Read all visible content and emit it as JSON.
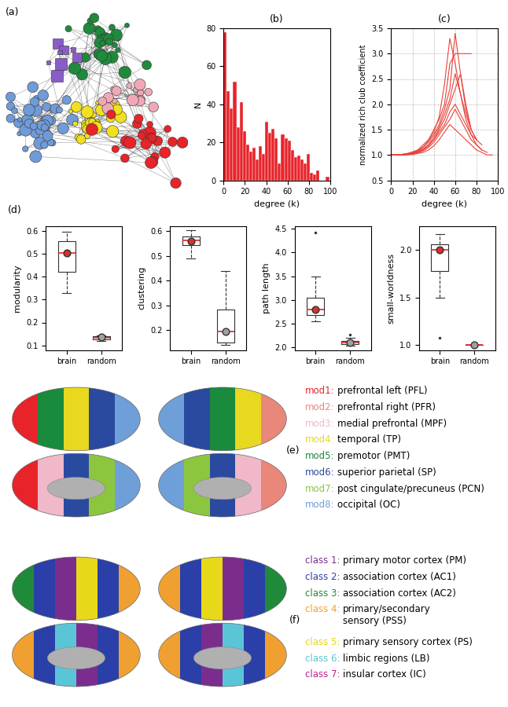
{
  "chart_data": [
    {
      "type": "network",
      "title": "(a)",
      "colors": [
        "#6f9bd8",
        "#1f8a3c",
        "#f0e020",
        "#f0a8b8",
        "#e8232a",
        "#8a5cc8"
      ]
    },
    {
      "type": "histogram",
      "title": "(b)",
      "xlabel": "degree (k)",
      "ylabel": "N",
      "bins": [
        0,
        3,
        6,
        9,
        12,
        15,
        18,
        21,
        24,
        27,
        30,
        33,
        36,
        39,
        42,
        45,
        48,
        51,
        54,
        57,
        60,
        63,
        66,
        69,
        72,
        75,
        78,
        81,
        84,
        87,
        90,
        93,
        96,
        99
      ],
      "counts": [
        78,
        47,
        38,
        52,
        28,
        41,
        26,
        19,
        15,
        17,
        11,
        18,
        14,
        31,
        25,
        27,
        22,
        9,
        24,
        22,
        21,
        16,
        12,
        13,
        11,
        9,
        14,
        4,
        3,
        5,
        0,
        0,
        2
      ],
      "color": "#e8232a",
      "xlim": [
        0,
        100
      ],
      "ylim": [
        0,
        80
      ],
      "xticks": [
        0,
        20,
        40,
        60,
        80,
        100
      ],
      "yticks": [
        0,
        20,
        40,
        60,
        80
      ]
    },
    {
      "type": "line",
      "title": "(c)",
      "xlabel": "degree (k)",
      "ylabel": "normalized rich club coefficient",
      "x": [
        0,
        5,
        10,
        15,
        20,
        25,
        30,
        35,
        40,
        45,
        50,
        55,
        60,
        65,
        70,
        75,
        80,
        85,
        90,
        95
      ],
      "series": [
        {
          "color": "#e8433a",
          "values": [
            1,
            1,
            1.01,
            1.02,
            1.04,
            1.08,
            1.15,
            1.25,
            1.4,
            1.6,
            1.9,
            2.3,
            3.4,
            2.6,
            1.9,
            1.5,
            1.3,
            null,
            null,
            null
          ]
        },
        {
          "color": "#e8433a",
          "values": [
            1,
            1,
            1.01,
            1.03,
            1.06,
            1.1,
            1.2,
            1.3,
            1.5,
            1.7,
            2.0,
            2.8,
            3.0,
            3.0,
            3.0,
            3.0,
            null,
            null,
            null,
            null
          ]
        },
        {
          "color": "#e8433a",
          "values": [
            1,
            1,
            1.0,
            1.01,
            1.03,
            1.06,
            1.1,
            1.2,
            1.3,
            1.45,
            1.6,
            1.85,
            2.0,
            1.8,
            1.6,
            1.4,
            1.3,
            1.2,
            null,
            null
          ]
        },
        {
          "color": "#e8433a",
          "values": [
            1,
            1,
            1.01,
            1.02,
            1.04,
            1.07,
            1.12,
            1.2,
            1.35,
            1.55,
            1.8,
            2.1,
            2.6,
            2.2,
            1.7,
            1.4,
            1.2,
            1.1,
            1.05,
            null
          ]
        },
        {
          "color": "#e8433a",
          "values": [
            1,
            1,
            1.0,
            1.01,
            1.02,
            1.04,
            1.08,
            1.15,
            1.25,
            1.4,
            1.55,
            1.7,
            1.9,
            1.7,
            1.5,
            1.3,
            1.2,
            1.1,
            null,
            null
          ]
        },
        {
          "color": "#e8433a",
          "values": [
            1,
            1,
            1.01,
            1.02,
            1.05,
            1.09,
            1.16,
            1.28,
            1.45,
            1.75,
            2.4,
            3.3,
            2.8,
            2.2,
            1.8,
            1.5,
            null,
            null,
            null,
            null
          ]
        },
        {
          "color": "#e8433a",
          "values": [
            1,
            1,
            1.0,
            1.0,
            1.01,
            1.03,
            1.05,
            1.1,
            1.18,
            1.3,
            1.45,
            1.6,
            1.5,
            1.4,
            1.3,
            1.2,
            1.1,
            1.05,
            1.0,
            1.0
          ]
        },
        {
          "color": "#e8433a",
          "values": [
            1,
            1,
            1.0,
            1.01,
            1.02,
            1.05,
            1.1,
            1.18,
            1.3,
            1.5,
            1.7,
            2.0,
            2.3,
            2.6,
            2.0,
            1.5,
            1.3,
            null,
            null,
            null
          ]
        }
      ],
      "xlim": [
        0,
        100
      ],
      "ylim": [
        0.5,
        3.5
      ],
      "xticks": [
        0,
        20,
        40,
        60,
        80,
        100
      ],
      "yticks": [
        0.5,
        {
          "value": 1,
          "label": "1.0"
        },
        1.5,
        {
          "value": 2,
          "label": "2.0"
        },
        2.5,
        {
          "value": 3,
          "label": "3.0"
        },
        3.5
      ],
      "grid": true
    },
    {
      "type": "box",
      "title": "(d)",
      "ylabel": "modularity",
      "categories": [
        "brain",
        "random"
      ],
      "stats": [
        {
          "whislo": 0.33,
          "q1": 0.42,
          "median": 0.505,
          "q3": 0.555,
          "whishi": 0.595,
          "mean": 0.505,
          "fliers": []
        },
        {
          "whislo": 0.12,
          "q1": 0.128,
          "median": 0.133,
          "q3": 0.14,
          "whishi": 0.145,
          "mean": 0.135,
          "fliers": []
        }
      ],
      "colors": [
        "#d9302a",
        "#a0a0a0"
      ],
      "ylim": [
        0.08,
        0.62
      ],
      "yticks": [
        0.1,
        0.2,
        0.3,
        0.4,
        0.5,
        0.6
      ]
    },
    {
      "type": "box",
      "ylabel": "clustering",
      "categories": [
        "brain",
        "random"
      ],
      "stats": [
        {
          "whislo": 0.49,
          "q1": 0.545,
          "median": 0.562,
          "q3": 0.578,
          "whishi": 0.605,
          "mean": 0.56,
          "fliers": []
        },
        {
          "whislo": 0.14,
          "q1": 0.15,
          "median": 0.195,
          "q3": 0.285,
          "whishi": 0.44,
          "mean": 0.195,
          "fliers": []
        }
      ],
      "colors": [
        "#d9302a",
        "#a0a0a0"
      ],
      "ylim": [
        0.12,
        0.62
      ],
      "yticks": [
        0.2,
        0.3,
        0.4,
        0.5,
        0.6
      ]
    },
    {
      "type": "box",
      "ylabel": "path length",
      "categories": [
        "brain",
        "random"
      ],
      "stats": [
        {
          "whislo": 2.55,
          "q1": 2.68,
          "median": 2.8,
          "q3": 3.05,
          "whishi": 3.5,
          "mean": 2.8,
          "fliers": [
            4.42
          ]
        },
        {
          "whislo": 2.04,
          "q1": 2.07,
          "median": 2.1,
          "q3": 2.14,
          "whishi": 2.2,
          "mean": 2.1,
          "fliers": [
            2.28
          ]
        }
      ],
      "colors": [
        "#d9302a",
        "#a0a0a0"
      ],
      "ylim": [
        1.95,
        4.55
      ],
      "yticks": [
        {
          "value": 2,
          "label": "2.0"
        },
        2.5,
        {
          "value": 3,
          "label": "3.0"
        },
        3.5,
        {
          "value": 4,
          "label": "4.0"
        },
        4.5
      ]
    },
    {
      "type": "box",
      "ylabel": "small-worldness",
      "categories": [
        "brain",
        "random"
      ],
      "stats": [
        {
          "whislo": 1.5,
          "q1": 1.78,
          "median": 2.0,
          "q3": 2.06,
          "whishi": 2.17,
          "mean": 2.0,
          "fliers": [
            1.08
          ]
        },
        {
          "whislo": 1.0,
          "q1": 1.0,
          "median": 1.0,
          "q3": 1.0,
          "whishi": 1.0,
          "mean": 1.0,
          "fliers": []
        }
      ],
      "colors": [
        "#d9302a",
        "#a0a0a0"
      ],
      "ylim": [
        0.95,
        2.25
      ],
      "yticks": [
        {
          "value": 1,
          "label": "1.0"
        },
        1.5,
        {
          "value": 2,
          "label": "2.0"
        }
      ]
    },
    {
      "type": "brain_map",
      "title": "(e)",
      "legend": [
        {
          "id": "mod1:",
          "name": "prefrontal left (PFL)",
          "color": "#e8232a"
        },
        {
          "id": "mod2:",
          "name": "prefrontal right (PFR)",
          "color": "#e9877a"
        },
        {
          "id": "mod3:",
          "name": "medial prefrontal (MPF)",
          "color": "#f0b8c8"
        },
        {
          "id": "mod4:",
          "name": "temporal (TP)",
          "color": "#e8d820"
        },
        {
          "id": "mod5:",
          "name": "premotor (PMT)",
          "color": "#1a8a3c"
        },
        {
          "id": "mod6:",
          "name": "superior parietal (SP)",
          "color": "#2a4aa0"
        },
        {
          "id": "mod7:",
          "name": "post cingulate/precuneus (PCN)",
          "color": "#8cc63f"
        },
        {
          "id": "mod8:",
          "name": "occipital (OC)",
          "color": "#6f9fd8"
        }
      ]
    },
    {
      "type": "brain_map",
      "title": "(f)",
      "legend": [
        {
          "id": "class 1:",
          "name": "primary motor cortex (PM)",
          "color": "#7b2d8e"
        },
        {
          "id": "class 2:",
          "name": "association cortex (AC1)",
          "color": "#2b3fa8"
        },
        {
          "id": "class 3:",
          "name": "association cortex (AC2)",
          "color": "#1f8a3a"
        },
        {
          "id": "class 4:",
          "name": "primary/secondary\nsensory (PSS)",
          "color": "#f0a030"
        },
        {
          "id": "class 5:",
          "name": "primary sensory cortex (PS)",
          "color": "#e8d81a"
        },
        {
          "id": "class 6:",
          "name": "limbic regions (LB)",
          "color": "#5bc5d8"
        },
        {
          "id": "class 7:",
          "name": "insular cortex (IC)",
          "color": "#c0208c"
        }
      ]
    }
  ]
}
